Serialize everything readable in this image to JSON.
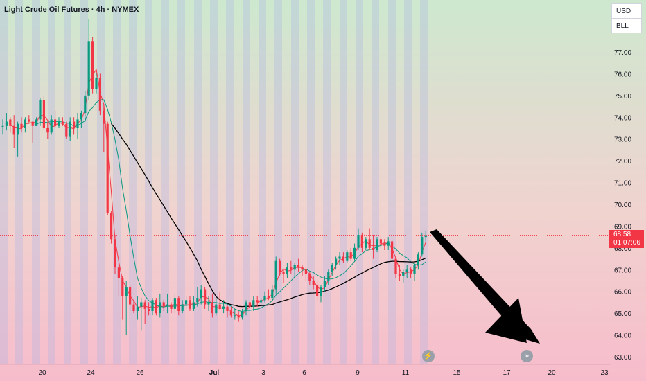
{
  "header": {
    "title": "Light Crude Oil Futures · 4h · NYMEX"
  },
  "selectors": {
    "currency": "USD",
    "unit": "BLL"
  },
  "current_price": {
    "price": "68.58",
    "countdown": "01:07:06"
  },
  "icons": {
    "event_icon": "lightning-icon",
    "forward_icon": "fast-forward-icon"
  },
  "colors": {
    "up": "#089981",
    "down": "#f23645",
    "ma_fast": "#f23645",
    "ma_mid": "#089981",
    "ma_slow": "#000000",
    "bg_top": "#cde8cf",
    "bg_bottom": "#f7bccb",
    "session_band": "#aab4e6"
  },
  "chart_data": {
    "type": "candlestick",
    "ylim": [
      63.0,
      77.0
    ],
    "y_ticks": [
      "77.00",
      "76.00",
      "75.00",
      "74.00",
      "73.00",
      "72.00",
      "71.00",
      "70.00",
      "69.00",
      "68.00",
      "67.00",
      "66.00",
      "65.00",
      "64.00",
      "63.00"
    ],
    "x_ticks": [
      "20",
      "24",
      "26",
      "Jul",
      "3",
      "6",
      "9",
      "11",
      "15",
      "17",
      "20",
      "23"
    ],
    "last_price": 68.58,
    "candles": [
      [
        73.6,
        73.9,
        73.2,
        73.6
      ],
      [
        73.6,
        74.2,
        73.4,
        73.8
      ],
      [
        73.9,
        74.0,
        73.3,
        73.6
      ],
      [
        73.6,
        74.1,
        72.6,
        73.2
      ],
      [
        73.2,
        73.8,
        72.2,
        73.7
      ],
      [
        73.7,
        74.0,
        73.3,
        73.5
      ],
      [
        73.5,
        74.0,
        73.3,
        73.9
      ],
      [
        73.9,
        74.1,
        73.7,
        73.8
      ],
      [
        73.8,
        73.8,
        72.8,
        73.6
      ],
      [
        73.6,
        74.0,
        73.6,
        73.9
      ],
      [
        73.9,
        74.9,
        73.6,
        74.8
      ],
      [
        74.8,
        75.0,
        73.4,
        73.5
      ],
      [
        73.5,
        73.8,
        73.0,
        73.3
      ],
      [
        73.3,
        74.1,
        73.2,
        73.9
      ],
      [
        73.9,
        74.3,
        73.5,
        73.6
      ],
      [
        73.6,
        74.0,
        73.5,
        73.8
      ],
      [
        73.8,
        74.0,
        73.6,
        73.7
      ],
      [
        73.7,
        73.8,
        73.0,
        73.1
      ],
      [
        73.1,
        74.0,
        72.9,
        73.8
      ],
      [
        73.8,
        74.0,
        73.2,
        73.5
      ],
      [
        73.5,
        74.2,
        73.0,
        73.9
      ],
      [
        73.9,
        74.3,
        73.5,
        74.2
      ],
      [
        74.2,
        75.2,
        73.8,
        75.0
      ],
      [
        75.0,
        78.5,
        74.8,
        77.5
      ],
      [
        77.5,
        77.7,
        75.1,
        75.3
      ],
      [
        75.3,
        76.0,
        75.1,
        75.8
      ],
      [
        75.8,
        76.0,
        74.1,
        74.3
      ],
      [
        74.3,
        74.6,
        72.4,
        73.7
      ],
      [
        73.7,
        73.8,
        69.5,
        69.6
      ],
      [
        69.6,
        69.7,
        68.2,
        68.4
      ],
      [
        68.4,
        68.6,
        66.8,
        67.1
      ],
      [
        67.1,
        67.6,
        65.8,
        66.6
      ],
      [
        66.6,
        66.7,
        64.7,
        65.8
      ],
      [
        65.8,
        66.5,
        64.0,
        66.2
      ],
      [
        66.2,
        66.3,
        65.1,
        65.4
      ],
      [
        65.4,
        65.6,
        65.0,
        65.1
      ],
      [
        65.1,
        65.8,
        64.7,
        65.3
      ],
      [
        65.3,
        65.7,
        64.2,
        65.5
      ],
      [
        65.5,
        65.6,
        64.5,
        65.2
      ],
      [
        65.2,
        65.5,
        64.9,
        65.1
      ],
      [
        65.1,
        65.7,
        64.9,
        65.6
      ],
      [
        65.6,
        65.7,
        64.9,
        65.0
      ],
      [
        65.0,
        65.9,
        64.8,
        65.5
      ],
      [
        65.5,
        65.6,
        65.1,
        65.3
      ],
      [
        65.3,
        65.9,
        65.0,
        65.4
      ],
      [
        65.4,
        65.5,
        65.0,
        65.2
      ],
      [
        65.2,
        65.9,
        65.0,
        65.7
      ],
      [
        65.7,
        65.8,
        64.9,
        65.1
      ],
      [
        65.1,
        65.6,
        65.0,
        65.4
      ],
      [
        65.4,
        65.8,
        65.2,
        65.6
      ],
      [
        65.6,
        65.8,
        65.1,
        65.2
      ],
      [
        65.2,
        65.8,
        65.1,
        65.5
      ],
      [
        65.5,
        66.2,
        65.3,
        65.7
      ],
      [
        65.7,
        66.3,
        65.4,
        66.1
      ],
      [
        66.1,
        66.2,
        65.2,
        65.4
      ],
      [
        65.4,
        65.8,
        65.1,
        65.5
      ],
      [
        65.5,
        65.9,
        64.8,
        65.0
      ],
      [
        65.0,
        65.7,
        64.9,
        65.4
      ],
      [
        65.4,
        66.0,
        65.2,
        65.2
      ],
      [
        65.2,
        65.6,
        65.0,
        65.3
      ],
      [
        65.3,
        65.4,
        64.8,
        65.1
      ],
      [
        65.1,
        65.3,
        64.8,
        64.9
      ],
      [
        64.9,
        65.2,
        64.7,
        64.9
      ],
      [
        64.9,
        65.1,
        64.6,
        64.8
      ],
      [
        64.8,
        65.2,
        64.7,
        65.1
      ],
      [
        65.1,
        65.6,
        64.9,
        65.5
      ],
      [
        65.5,
        65.6,
        65.2,
        65.3
      ],
      [
        65.3,
        65.8,
        65.1,
        65.6
      ],
      [
        65.6,
        65.8,
        65.3,
        65.5
      ],
      [
        65.5,
        65.7,
        65.3,
        65.6
      ],
      [
        65.6,
        66.0,
        65.5,
        65.8
      ],
      [
        65.8,
        66.1,
        65.6,
        65.7
      ],
      [
        65.7,
        66.3,
        65.6,
        66.1
      ],
      [
        66.1,
        67.6,
        65.9,
        67.4
      ],
      [
        67.4,
        67.5,
        66.7,
        66.9
      ],
      [
        66.9,
        67.0,
        66.4,
        66.8
      ],
      [
        66.8,
        67.3,
        66.6,
        67.1
      ],
      [
        67.1,
        67.4,
        66.8,
        67.0
      ],
      [
        67.0,
        67.3,
        66.6,
        67.2
      ],
      [
        67.2,
        67.5,
        66.9,
        67.1
      ],
      [
        67.1,
        67.2,
        66.7,
        67.0
      ],
      [
        67.0,
        67.1,
        66.5,
        66.8
      ],
      [
        66.8,
        66.9,
        66.3,
        66.5
      ],
      [
        66.5,
        66.7,
        66.1,
        66.3
      ],
      [
        66.3,
        66.5,
        65.6,
        65.8
      ],
      [
        65.8,
        66.3,
        65.5,
        66.2
      ],
      [
        66.2,
        66.7,
        66.0,
        66.5
      ],
      [
        66.5,
        67.0,
        66.3,
        66.9
      ],
      [
        66.9,
        67.3,
        66.7,
        67.2
      ],
      [
        67.2,
        67.6,
        67.0,
        67.5
      ],
      [
        67.5,
        67.8,
        67.2,
        67.6
      ],
      [
        67.6,
        67.8,
        67.3,
        67.4
      ],
      [
        67.4,
        67.9,
        67.3,
        67.8
      ],
      [
        67.8,
        68.0,
        67.4,
        67.5
      ],
      [
        67.5,
        68.2,
        67.4,
        68.0
      ],
      [
        68.0,
        68.9,
        67.9,
        68.6
      ],
      [
        68.6,
        68.7,
        67.8,
        68.0
      ],
      [
        68.0,
        68.5,
        67.9,
        68.4
      ],
      [
        68.4,
        68.9,
        67.9,
        68.0
      ],
      [
        68.0,
        68.6,
        67.5,
        67.9
      ],
      [
        67.9,
        68.5,
        67.8,
        68.4
      ],
      [
        68.4,
        68.6,
        68.0,
        68.2
      ],
      [
        68.2,
        68.4,
        67.9,
        68.1
      ],
      [
        68.1,
        68.5,
        67.9,
        68.3
      ],
      [
        68.3,
        68.4,
        67.4,
        67.5
      ],
      [
        67.5,
        67.6,
        66.6,
        66.8
      ],
      [
        66.8,
        67.2,
        66.5,
        66.7
      ],
      [
        66.7,
        67.0,
        66.4,
        66.9
      ],
      [
        66.9,
        67.2,
        66.6,
        67.0
      ],
      [
        67.0,
        67.1,
        66.6,
        66.8
      ],
      [
        66.8,
        67.3,
        66.5,
        67.2
      ],
      [
        67.2,
        67.8,
        67.0,
        67.7
      ],
      [
        67.7,
        68.7,
        67.6,
        68.5
      ],
      [
        68.5,
        68.8,
        68.3,
        68.58
      ]
    ]
  }
}
